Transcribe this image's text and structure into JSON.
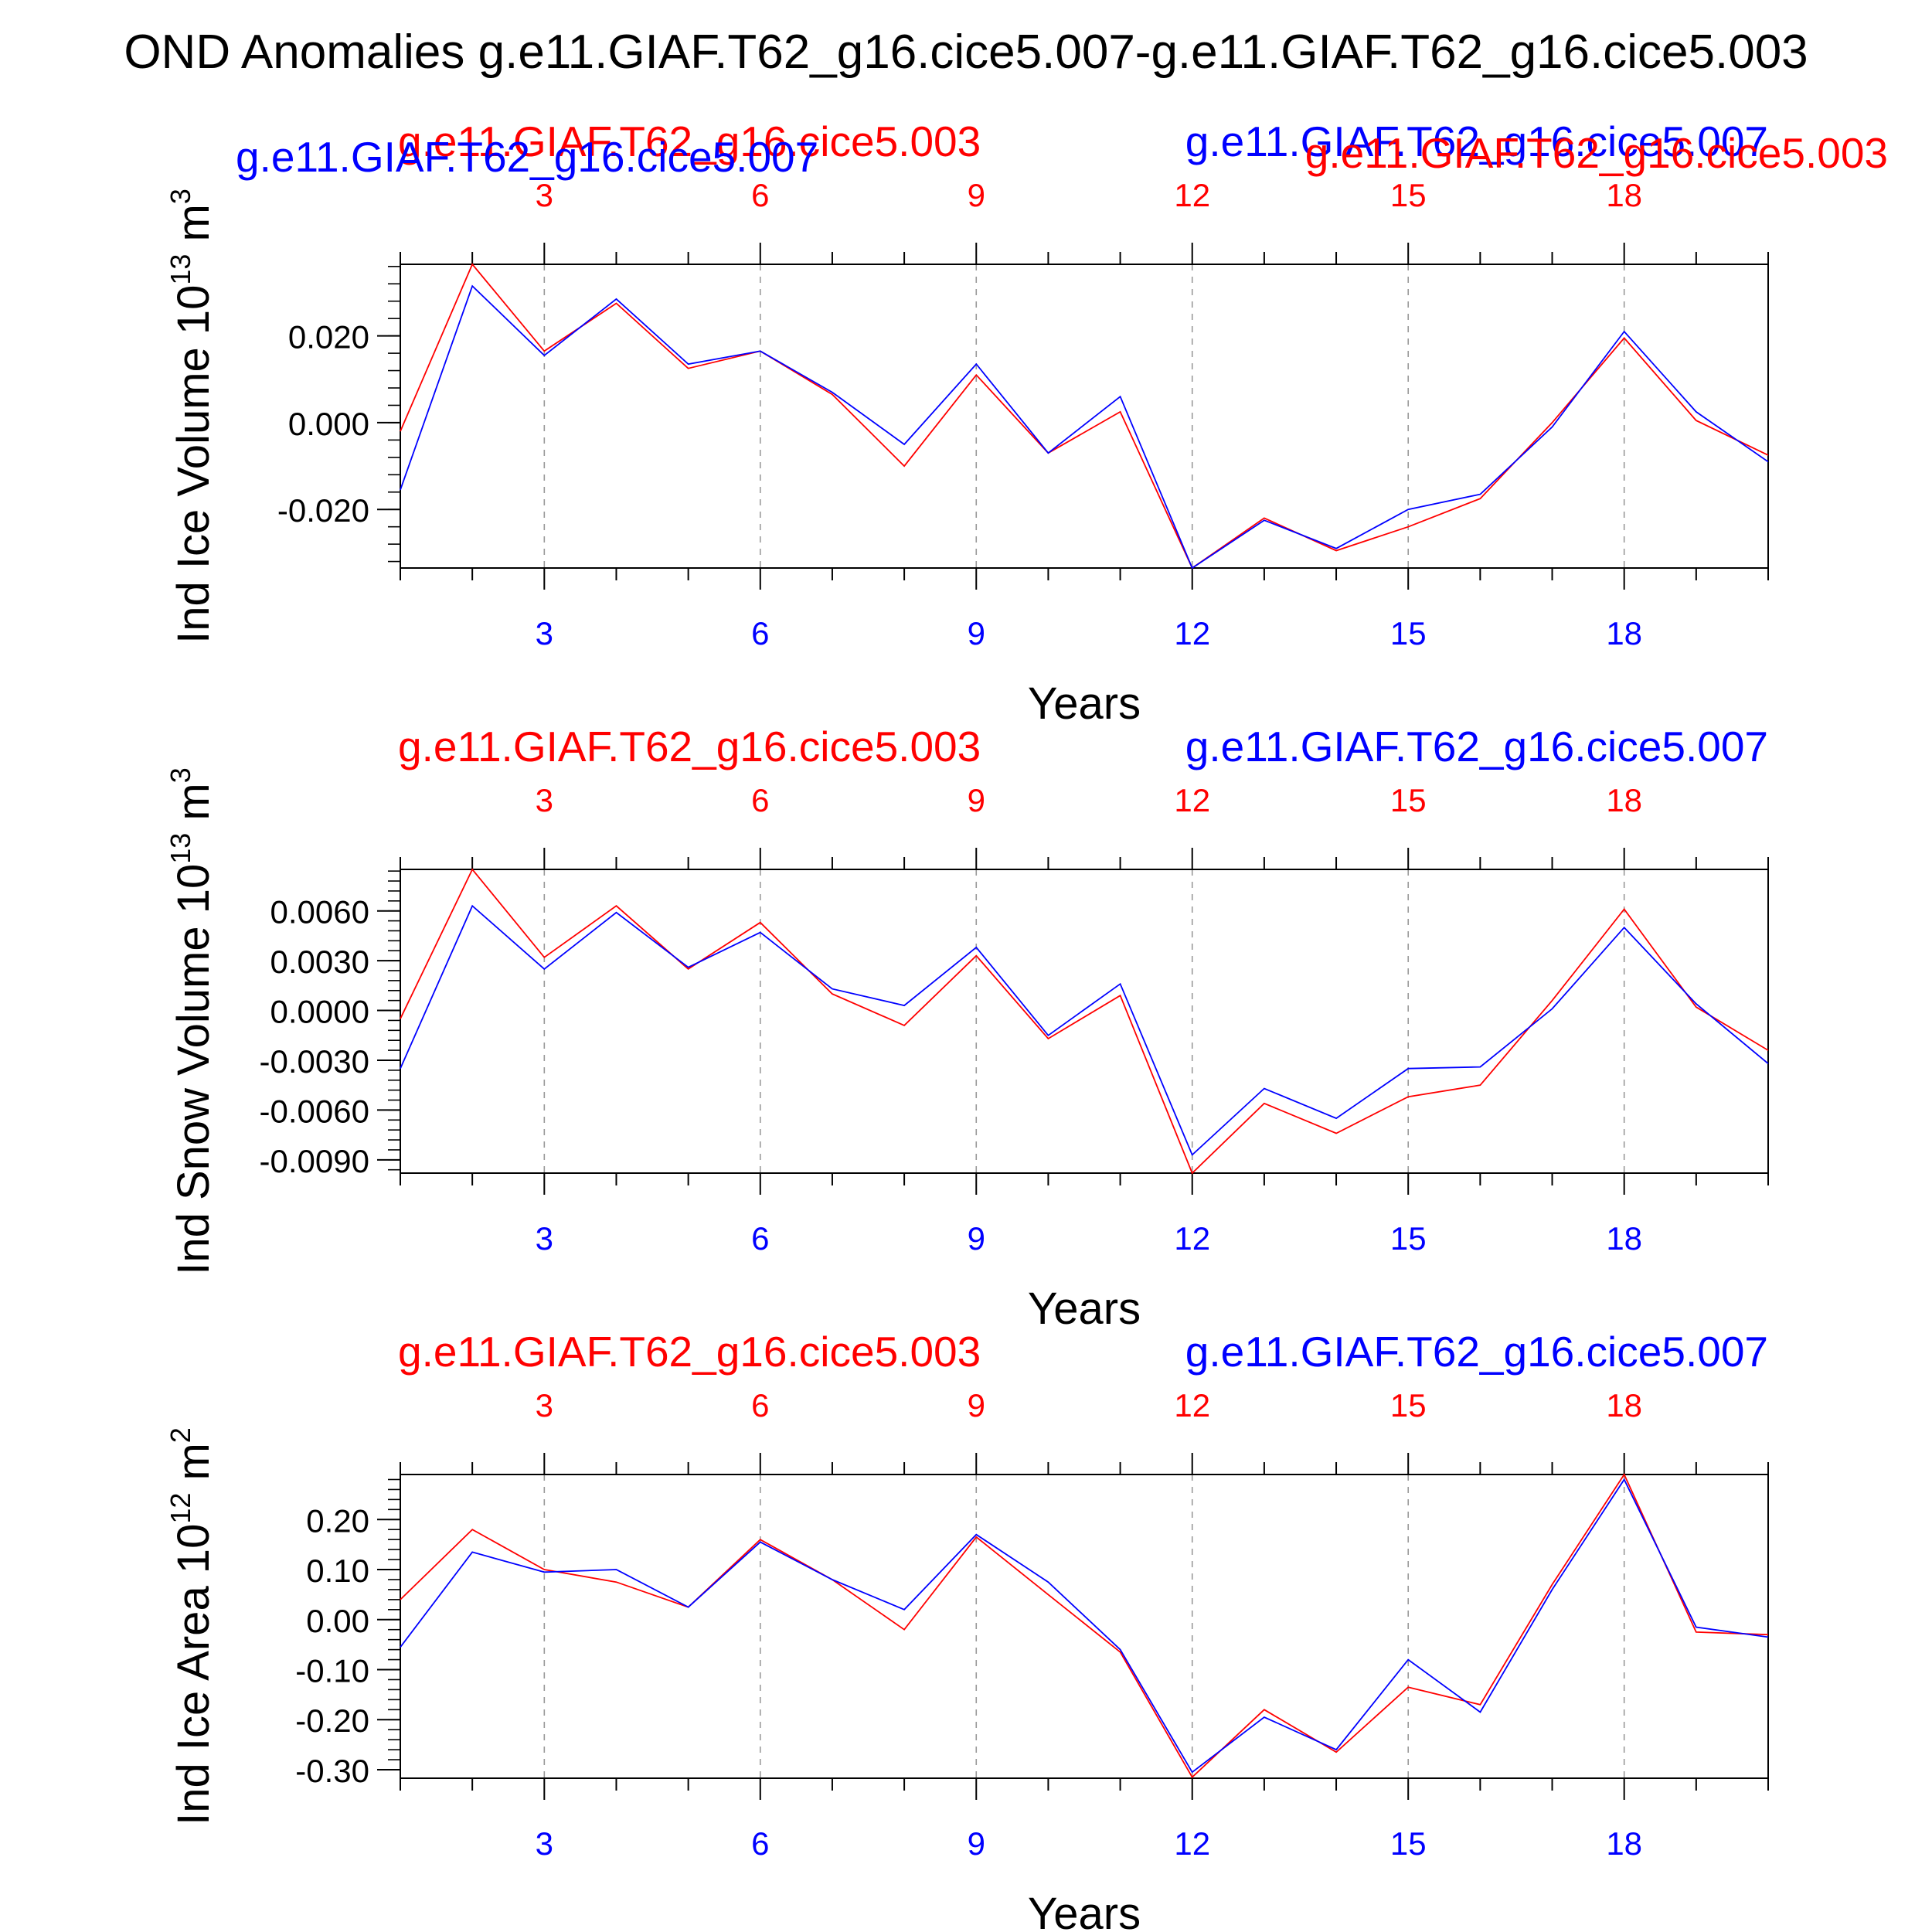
{
  "main_title": "OND Anomalies g.e11.GIAF.T62_g16.cice5.007-g.e11.GIAF.T62_g16.cice5.003",
  "colors": {
    "red": "#ff0000",
    "blue": "#0000ff",
    "axis": "#000000",
    "grid": "#999999"
  },
  "chart_data": [
    {
      "type": "line",
      "name": "ice-volume",
      "title_left": "g.e11.GIAF.T62_g16.cice5.003",
      "title_right": "g.e11.GIAF.T62_g16.cice5.007",
      "extra_labels": [
        "g.e11.GIAF.T62_g16.cice5.007",
        "g.e11.GIAF.T62_g16.cice5.003"
      ],
      "ylabel": "Ind Ice Volume 10",
      "ylabel_sup": "13",
      "ylabel_unit": "m",
      "ylabel_unit_sup": "3",
      "xlabel": "Years",
      "xlim": [
        1,
        20
      ],
      "ylim": [
        -0.0335,
        0.0365
      ],
      "xticks": [
        3,
        6,
        9,
        12,
        15,
        18
      ],
      "yticks": [
        0.02,
        0.0,
        -0.02
      ],
      "ytick_labels": [
        "0.020",
        "0.000",
        "-0.020"
      ],
      "yminor_step": 0.004,
      "grid": "vertical-dashed",
      "x": [
        1,
        2,
        3,
        4,
        5,
        6,
        7,
        8,
        9,
        10,
        11,
        12,
        13,
        14,
        15,
        16,
        17,
        18,
        19,
        20
      ],
      "series": [
        {
          "color": "#ff0000",
          "values": [
            -0.002,
            0.0365,
            0.0165,
            0.0275,
            0.0125,
            0.0165,
            0.0065,
            -0.01,
            0.011,
            -0.007,
            0.0025,
            -0.0335,
            -0.022,
            -0.0295,
            -0.024,
            -0.0175,
            0.0,
            0.0195,
            0.0005,
            -0.0075
          ]
        },
        {
          "color": "#0000ff",
          "values": [
            -0.0155,
            0.0315,
            0.0155,
            0.0285,
            0.0135,
            0.0165,
            0.007,
            -0.005,
            0.0135,
            -0.007,
            0.006,
            -0.0335,
            -0.0225,
            -0.029,
            -0.02,
            -0.0165,
            -0.001,
            0.021,
            0.0025,
            -0.009
          ]
        }
      ]
    },
    {
      "type": "line",
      "name": "snow-volume",
      "title_left": "g.e11.GIAF.T62_g16.cice5.003",
      "title_right": "g.e11.GIAF.T62_g16.cice5.007",
      "extra_labels": [],
      "ylabel": "Ind Snow Volume 10",
      "ylabel_sup": "13",
      "ylabel_unit": "m",
      "ylabel_unit_sup": "3",
      "xlabel": "Years",
      "xlim": [
        1,
        20
      ],
      "ylim": [
        -0.0098,
        0.0085
      ],
      "xticks": [
        3,
        6,
        9,
        12,
        15,
        18
      ],
      "yticks": [
        0.006,
        0.003,
        0.0,
        -0.003,
        -0.006,
        -0.009
      ],
      "ytick_labels": [
        "0.0060",
        "0.0030",
        "0.0000",
        "-0.0030",
        "-0.0060",
        "-0.0090"
      ],
      "yminor_step": 0.0006,
      "grid": "vertical-dashed",
      "x": [
        1,
        2,
        3,
        4,
        5,
        6,
        7,
        8,
        9,
        10,
        11,
        12,
        13,
        14,
        15,
        16,
        17,
        18,
        19,
        20
      ],
      "series": [
        {
          "color": "#ff0000",
          "values": [
            -0.0005,
            0.0085,
            0.0032,
            0.0063,
            0.0025,
            0.0053,
            0.001,
            -0.0009,
            0.0033,
            -0.0017,
            0.0009,
            -0.0098,
            -0.0056,
            -0.0074,
            -0.0052,
            -0.0045,
            0.0006,
            0.0061,
            0.0002,
            -0.0024
          ]
        },
        {
          "color": "#0000ff",
          "values": [
            -0.0035,
            0.0063,
            0.0025,
            0.0059,
            0.0026,
            0.0047,
            0.0013,
            0.0003,
            0.0038,
            -0.0015,
            0.0016,
            -0.0087,
            -0.0047,
            -0.0065,
            -0.0035,
            -0.0034,
            0.0001,
            0.005,
            0.0004,
            -0.0032
          ]
        }
      ]
    },
    {
      "type": "line",
      "name": "ice-area",
      "title_left": "g.e11.GIAF.T62_g16.cice5.003",
      "title_right": "g.e11.GIAF.T62_g16.cice5.007",
      "extra_labels": [],
      "ylabel": "Ind Ice Area 10",
      "ylabel_sup": "12",
      "ylabel_unit": "m",
      "ylabel_unit_sup": "2",
      "xlabel": "Years",
      "xlim": [
        1,
        20
      ],
      "ylim": [
        -0.317,
        0.29
      ],
      "xticks": [
        3,
        6,
        9,
        12,
        15,
        18
      ],
      "yticks": [
        0.2,
        0.1,
        0.0,
        -0.1,
        -0.2,
        -0.3
      ],
      "ytick_labels": [
        "0.20",
        "0.10",
        "0.00",
        "-0.10",
        "-0.20",
        "-0.30"
      ],
      "yminor_step": 0.02,
      "grid": "vertical-dashed",
      "x": [
        1,
        2,
        3,
        4,
        5,
        6,
        7,
        8,
        9,
        10,
        11,
        12,
        13,
        14,
        15,
        16,
        17,
        18,
        19,
        20
      ],
      "series": [
        {
          "color": "#ff0000",
          "values": [
            0.04,
            0.18,
            0.1,
            0.075,
            0.025,
            0.16,
            0.08,
            -0.02,
            0.165,
            0.05,
            -0.065,
            -0.315,
            -0.18,
            -0.265,
            -0.135,
            -0.17,
            0.07,
            0.29,
            -0.025,
            -0.03
          ]
        },
        {
          "color": "#0000ff",
          "values": [
            -0.055,
            0.135,
            0.095,
            0.1,
            0.025,
            0.155,
            0.08,
            0.02,
            0.17,
            0.075,
            -0.06,
            -0.305,
            -0.195,
            -0.26,
            -0.08,
            -0.185,
            0.06,
            0.28,
            -0.015,
            -0.035
          ]
        }
      ]
    }
  ]
}
